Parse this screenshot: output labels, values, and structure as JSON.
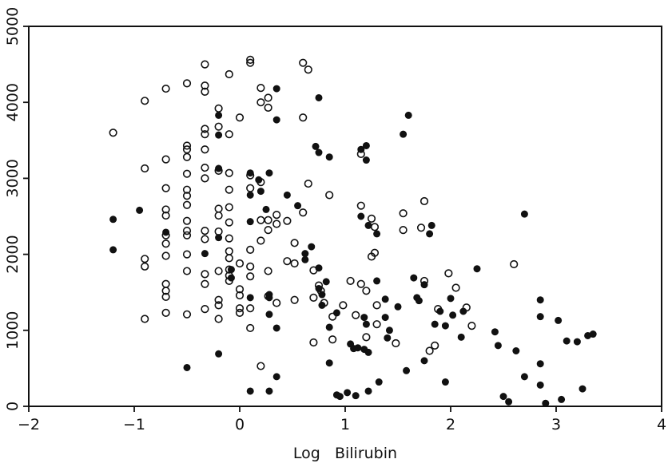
{
  "chart_data": {
    "type": "scatter",
    "title": "",
    "xlabel": "Log   Bilirubin",
    "ylabel": "",
    "xlim": [
      -2,
      4
    ],
    "ylim": [
      0,
      5000
    ],
    "xticks": [
      "−2",
      "−1",
      "0",
      "1",
      "2",
      "3",
      "4"
    ],
    "yticks": [
      "0",
      "1000",
      "2000",
      "3000",
      "4000",
      "5000"
    ],
    "grid": false,
    "legend": "none",
    "series": [
      {
        "marker": "open-circle",
        "color": "#111111",
        "points": [
          [
            -1.2,
            3600
          ],
          [
            -0.9,
            4020
          ],
          [
            -0.9,
            3130
          ],
          [
            -0.9,
            1940
          ],
          [
            -0.9,
            1840
          ],
          [
            -0.9,
            1150
          ],
          [
            -0.7,
            4180
          ],
          [
            -0.7,
            3250
          ],
          [
            -0.7,
            2870
          ],
          [
            -0.7,
            2590
          ],
          [
            -0.7,
            2510
          ],
          [
            -0.7,
            2250
          ],
          [
            -0.7,
            2140
          ],
          [
            -0.7,
            1980
          ],
          [
            -0.7,
            1610
          ],
          [
            -0.7,
            1520
          ],
          [
            -0.7,
            1440
          ],
          [
            -0.7,
            1230
          ],
          [
            -0.5,
            4250
          ],
          [
            -0.5,
            3430
          ],
          [
            -0.5,
            3380
          ],
          [
            -0.5,
            3280
          ],
          [
            -0.5,
            3060
          ],
          [
            -0.5,
            2850
          ],
          [
            -0.5,
            2770
          ],
          [
            -0.5,
            2650
          ],
          [
            -0.5,
            2440
          ],
          [
            -0.5,
            2310
          ],
          [
            -0.5,
            2250
          ],
          [
            -0.5,
            2000
          ],
          [
            -0.5,
            1780
          ],
          [
            -0.5,
            1210
          ],
          [
            -0.33,
            4500
          ],
          [
            -0.33,
            4220
          ],
          [
            -0.33,
            4140
          ],
          [
            -0.33,
            3650
          ],
          [
            -0.33,
            3580
          ],
          [
            -0.33,
            3380
          ],
          [
            -0.33,
            3140
          ],
          [
            -0.33,
            3000
          ],
          [
            -0.33,
            2310
          ],
          [
            -0.33,
            2200
          ],
          [
            -0.33,
            1740
          ],
          [
            -0.33,
            1610
          ],
          [
            -0.33,
            1280
          ],
          [
            -0.2,
            3920
          ],
          [
            -0.2,
            3680
          ],
          [
            -0.2,
            3100
          ],
          [
            -0.2,
            2600
          ],
          [
            -0.2,
            2510
          ],
          [
            -0.2,
            2300
          ],
          [
            -0.2,
            1780
          ],
          [
            -0.2,
            1400
          ],
          [
            -0.2,
            1330
          ],
          [
            -0.2,
            1150
          ],
          [
            -0.1,
            4370
          ],
          [
            -0.1,
            3580
          ],
          [
            -0.1,
            3070
          ],
          [
            -0.1,
            2850
          ],
          [
            -0.1,
            2620
          ],
          [
            -0.1,
            2420
          ],
          [
            -0.1,
            2210
          ],
          [
            -0.1,
            2040
          ],
          [
            -0.1,
            1950
          ],
          [
            -0.1,
            1800
          ],
          [
            -0.1,
            1720
          ],
          [
            -0.1,
            1650
          ],
          [
            0.0,
            3800
          ],
          [
            0.0,
            1880
          ],
          [
            0.0,
            1540
          ],
          [
            0.0,
            1460
          ],
          [
            0.0,
            1290
          ],
          [
            0.0,
            1230
          ],
          [
            0.1,
            4560
          ],
          [
            0.1,
            4520
          ],
          [
            0.1,
            3040
          ],
          [
            0.1,
            2870
          ],
          [
            0.1,
            2060
          ],
          [
            0.1,
            1840
          ],
          [
            0.1,
            1710
          ],
          [
            0.1,
            1290
          ],
          [
            0.1,
            1030
          ],
          [
            0.2,
            4190
          ],
          [
            0.2,
            4000
          ],
          [
            0.2,
            2950
          ],
          [
            0.2,
            2450
          ],
          [
            0.2,
            2180
          ],
          [
            0.2,
            530
          ],
          [
            0.27,
            4060
          ],
          [
            0.27,
            3930
          ],
          [
            0.27,
            2450
          ],
          [
            0.27,
            2320
          ],
          [
            0.27,
            1780
          ],
          [
            0.27,
            1450
          ],
          [
            0.35,
            2520
          ],
          [
            0.35,
            2400
          ],
          [
            0.35,
            1360
          ],
          [
            0.45,
            2440
          ],
          [
            0.45,
            1910
          ],
          [
            0.52,
            2150
          ],
          [
            0.52,
            1880
          ],
          [
            0.52,
            1400
          ],
          [
            0.6,
            4520
          ],
          [
            0.6,
            3800
          ],
          [
            0.6,
            2550
          ],
          [
            0.65,
            4430
          ],
          [
            0.65,
            2930
          ],
          [
            0.7,
            1790
          ],
          [
            0.7,
            1430
          ],
          [
            0.7,
            840
          ],
          [
            0.75,
            1590
          ],
          [
            0.77,
            1520
          ],
          [
            0.8,
            1360
          ],
          [
            0.85,
            2780
          ],
          [
            0.88,
            1180
          ],
          [
            0.88,
            880
          ],
          [
            0.98,
            1330
          ],
          [
            1.05,
            1650
          ],
          [
            1.1,
            1200
          ],
          [
            1.15,
            3320
          ],
          [
            1.15,
            2640
          ],
          [
            1.15,
            1610
          ],
          [
            1.2,
            1520
          ],
          [
            1.2,
            910
          ],
          [
            1.25,
            2470
          ],
          [
            1.25,
            1970
          ],
          [
            1.28,
            2360
          ],
          [
            1.28,
            2020
          ],
          [
            1.3,
            1330
          ],
          [
            1.3,
            1080
          ],
          [
            1.48,
            830
          ],
          [
            1.55,
            2540
          ],
          [
            1.55,
            2320
          ],
          [
            1.72,
            2350
          ],
          [
            1.75,
            2700
          ],
          [
            1.75,
            1650
          ],
          [
            1.8,
            730
          ],
          [
            1.85,
            800
          ],
          [
            1.88,
            1280
          ],
          [
            1.98,
            1750
          ],
          [
            2.05,
            1560
          ],
          [
            2.15,
            1300
          ],
          [
            2.2,
            1060
          ],
          [
            2.6,
            1870
          ]
        ]
      },
      {
        "marker": "filled-circle",
        "color": "#111111",
        "points": [
          [
            -1.2,
            2460
          ],
          [
            -1.2,
            2060
          ],
          [
            -0.95,
            2580
          ],
          [
            -0.7,
            2290
          ],
          [
            -0.5,
            510
          ],
          [
            -0.33,
            2010
          ],
          [
            -0.2,
            3830
          ],
          [
            -0.2,
            3570
          ],
          [
            -0.2,
            3130
          ],
          [
            -0.2,
            2220
          ],
          [
            -0.2,
            690
          ],
          [
            -0.08,
            1800
          ],
          [
            -0.08,
            1690
          ],
          [
            0.1,
            3070
          ],
          [
            0.1,
            2780
          ],
          [
            0.1,
            2430
          ],
          [
            0.1,
            1430
          ],
          [
            0.1,
            200
          ],
          [
            0.18,
            2980
          ],
          [
            0.2,
            2830
          ],
          [
            0.25,
            2590
          ],
          [
            0.28,
            3070
          ],
          [
            0.28,
            1470
          ],
          [
            0.28,
            1430
          ],
          [
            0.28,
            1210
          ],
          [
            0.28,
            200
          ],
          [
            0.35,
            4180
          ],
          [
            0.35,
            3770
          ],
          [
            0.35,
            1030
          ],
          [
            0.35,
            390
          ],
          [
            0.45,
            2780
          ],
          [
            0.55,
            2640
          ],
          [
            0.62,
            2010
          ],
          [
            0.62,
            1930
          ],
          [
            0.68,
            2100
          ],
          [
            0.72,
            3420
          ],
          [
            0.75,
            4060
          ],
          [
            0.75,
            3340
          ],
          [
            0.75,
            1820
          ],
          [
            0.75,
            1550
          ],
          [
            0.78,
            1470
          ],
          [
            0.78,
            1330
          ],
          [
            0.82,
            1640
          ],
          [
            0.85,
            3280
          ],
          [
            0.85,
            1040
          ],
          [
            0.85,
            570
          ],
          [
            0.92,
            1230
          ],
          [
            0.92,
            150
          ],
          [
            0.95,
            130
          ],
          [
            1.05,
            820
          ],
          [
            1.08,
            760
          ],
          [
            1.12,
            770
          ],
          [
            1.15,
            3380
          ],
          [
            1.15,
            2500
          ],
          [
            1.18,
            1170
          ],
          [
            1.18,
            750
          ],
          [
            1.2,
            3430
          ],
          [
            1.2,
            3240
          ],
          [
            1.2,
            1080
          ],
          [
            1.22,
            2380
          ],
          [
            1.22,
            710
          ],
          [
            1.22,
            200
          ],
          [
            1.3,
            1650
          ],
          [
            1.3,
            2270
          ],
          [
            1.32,
            320
          ],
          [
            1.38,
            1410
          ],
          [
            1.38,
            1170
          ],
          [
            1.4,
            900
          ],
          [
            1.42,
            1000
          ],
          [
            1.5,
            1310
          ],
          [
            1.55,
            3580
          ],
          [
            1.6,
            3830
          ],
          [
            1.65,
            1690
          ],
          [
            1.68,
            1430
          ],
          [
            1.7,
            1390
          ],
          [
            1.75,
            1600
          ],
          [
            1.75,
            600
          ],
          [
            1.8,
            2270
          ],
          [
            1.82,
            2380
          ],
          [
            1.85,
            1080
          ],
          [
            1.9,
            1250
          ],
          [
            1.95,
            1060
          ],
          [
            1.95,
            320
          ],
          [
            2.0,
            1420
          ],
          [
            2.02,
            1200
          ],
          [
            2.1,
            910
          ],
          [
            2.12,
            1250
          ],
          [
            2.25,
            1810
          ],
          [
            2.42,
            980
          ],
          [
            2.45,
            800
          ],
          [
            2.5,
            130
          ],
          [
            2.55,
            60
          ],
          [
            2.62,
            730
          ],
          [
            2.7,
            2530
          ],
          [
            2.7,
            390
          ],
          [
            2.85,
            1400
          ],
          [
            2.85,
            1180
          ],
          [
            2.85,
            560
          ],
          [
            2.85,
            280
          ],
          [
            2.9,
            40
          ],
          [
            3.02,
            1130
          ],
          [
            3.05,
            90
          ],
          [
            3.1,
            860
          ],
          [
            3.2,
            850
          ],
          [
            3.25,
            230
          ],
          [
            3.3,
            930
          ],
          [
            3.35,
            950
          ],
          [
            1.02,
            180
          ],
          [
            1.1,
            140
          ],
          [
            1.58,
            470
          ]
        ]
      }
    ]
  }
}
